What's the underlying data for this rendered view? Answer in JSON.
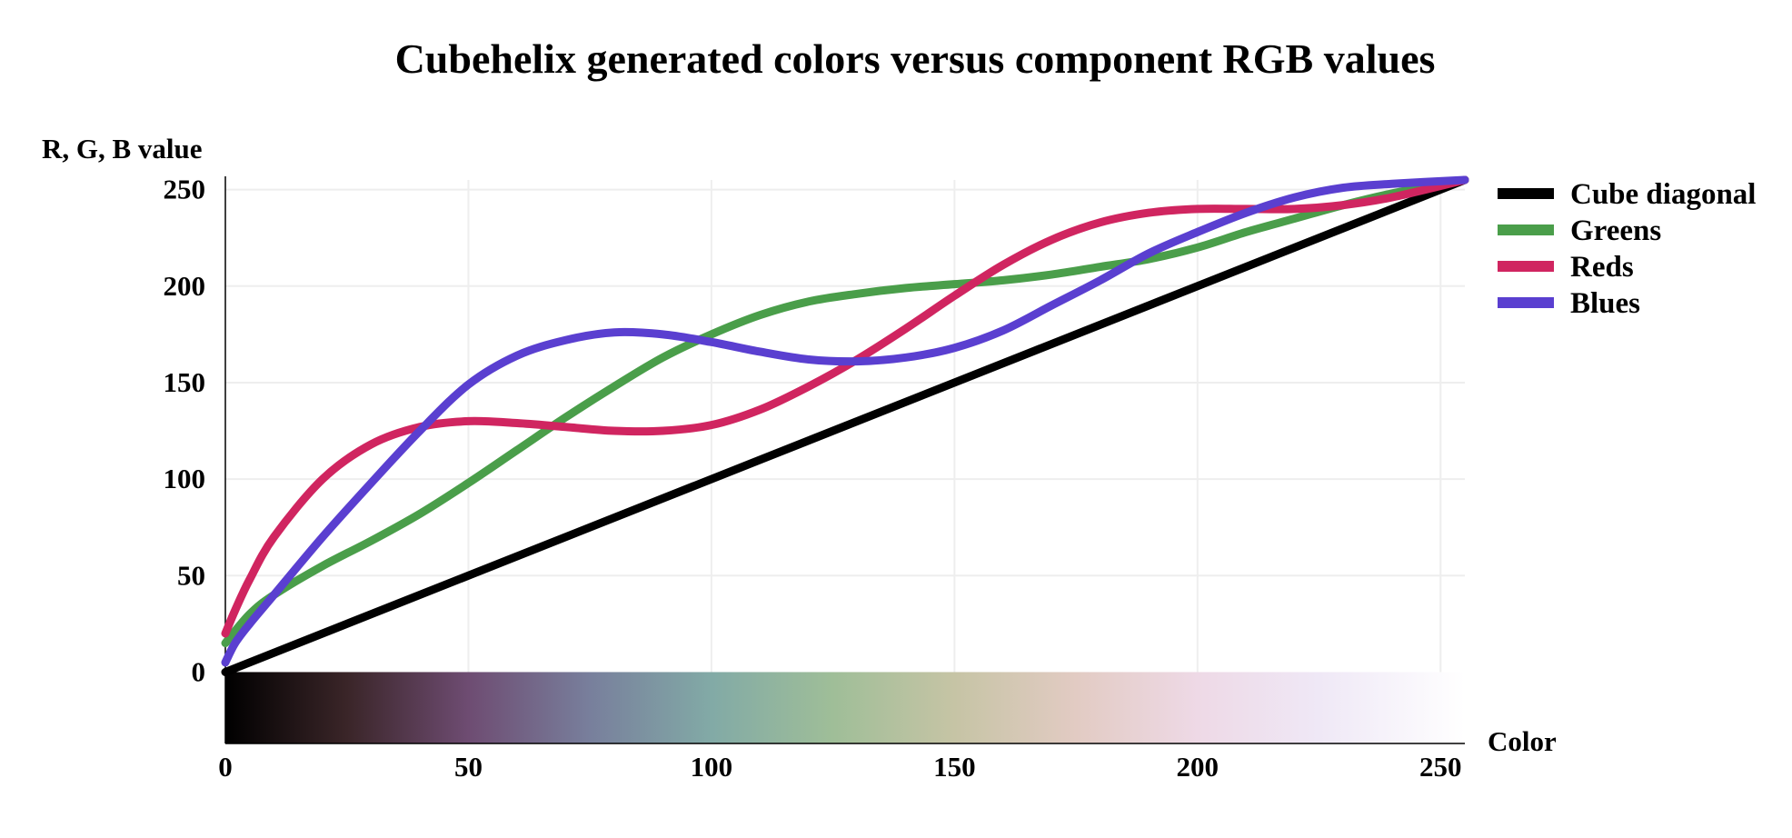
{
  "chart_data": {
    "type": "line",
    "title": "Cubehelix generated colors versus component RGB values",
    "xlabel": "Color",
    "ylabel": "R, G, B value",
    "xlim": [
      0,
      255
    ],
    "ylim": [
      -37,
      255
    ],
    "x_ticks": [
      "0",
      "50",
      "100",
      "150",
      "200",
      "250"
    ],
    "y_ticks": [
      "0",
      "50",
      "100",
      "150",
      "200",
      "250"
    ],
    "grid": true,
    "legend_position": "top-right",
    "legend": [
      "Cube diagonal",
      "Greens",
      "Reds",
      "Blues"
    ],
    "series": [
      {
        "name": "Cube diagonal",
        "color": "#000000",
        "x": [
          0,
          255
        ],
        "values": [
          0,
          255
        ]
      },
      {
        "name": "Greens",
        "color": "#4a9e4a",
        "x": [
          0,
          5,
          10,
          20,
          30,
          40,
          50,
          60,
          70,
          80,
          90,
          100,
          110,
          120,
          130,
          140,
          150,
          160,
          170,
          180,
          190,
          200,
          210,
          220,
          230,
          240,
          255
        ],
        "values": [
          15,
          30,
          40,
          55,
          68,
          82,
          98,
          115,
          132,
          148,
          163,
          175,
          185,
          192,
          196,
          199,
          201,
          203,
          206,
          210,
          214,
          220,
          228,
          235,
          242,
          248,
          255
        ]
      },
      {
        "name": "Reds",
        "color": "#d02560",
        "x": [
          0,
          2,
          5,
          10,
          20,
          30,
          40,
          50,
          60,
          70,
          80,
          90,
          100,
          110,
          120,
          130,
          140,
          150,
          160,
          170,
          180,
          190,
          200,
          210,
          220,
          230,
          240,
          255
        ],
        "values": [
          20,
          32,
          48,
          70,
          100,
          118,
          127,
          130,
          129,
          127,
          125,
          125,
          128,
          136,
          148,
          162,
          178,
          195,
          211,
          224,
          233,
          238,
          240,
          240,
          240,
          242,
          246,
          255
        ]
      },
      {
        "name": "Blues",
        "color": "#5a3fd0",
        "x": [
          0,
          2,
          5,
          10,
          20,
          30,
          40,
          50,
          60,
          70,
          80,
          90,
          100,
          110,
          120,
          130,
          140,
          150,
          160,
          170,
          180,
          190,
          200,
          210,
          220,
          230,
          240,
          255
        ],
        "values": [
          5,
          15,
          25,
          40,
          70,
          98,
          125,
          149,
          164,
          172,
          176,
          175,
          171,
          166,
          162,
          161,
          163,
          168,
          177,
          190,
          203,
          217,
          228,
          238,
          246,
          251,
          253,
          255
        ]
      }
    ],
    "color_strip": {
      "label": "cubehelix gradient",
      "stops": [
        {
          "x": 0,
          "color": "#000000"
        },
        {
          "x": 25,
          "color": "#3a2528"
        },
        {
          "x": 50,
          "color": "#6e4c72"
        },
        {
          "x": 75,
          "color": "#787f9c"
        },
        {
          "x": 100,
          "color": "#82aaa6"
        },
        {
          "x": 125,
          "color": "#9fbe98"
        },
        {
          "x": 150,
          "color": "#c6c4a5"
        },
        {
          "x": 175,
          "color": "#e2cbc3"
        },
        {
          "x": 200,
          "color": "#eed9e6"
        },
        {
          "x": 225,
          "color": "#efe8f6"
        },
        {
          "x": 255,
          "color": "#ffffff"
        }
      ]
    }
  }
}
